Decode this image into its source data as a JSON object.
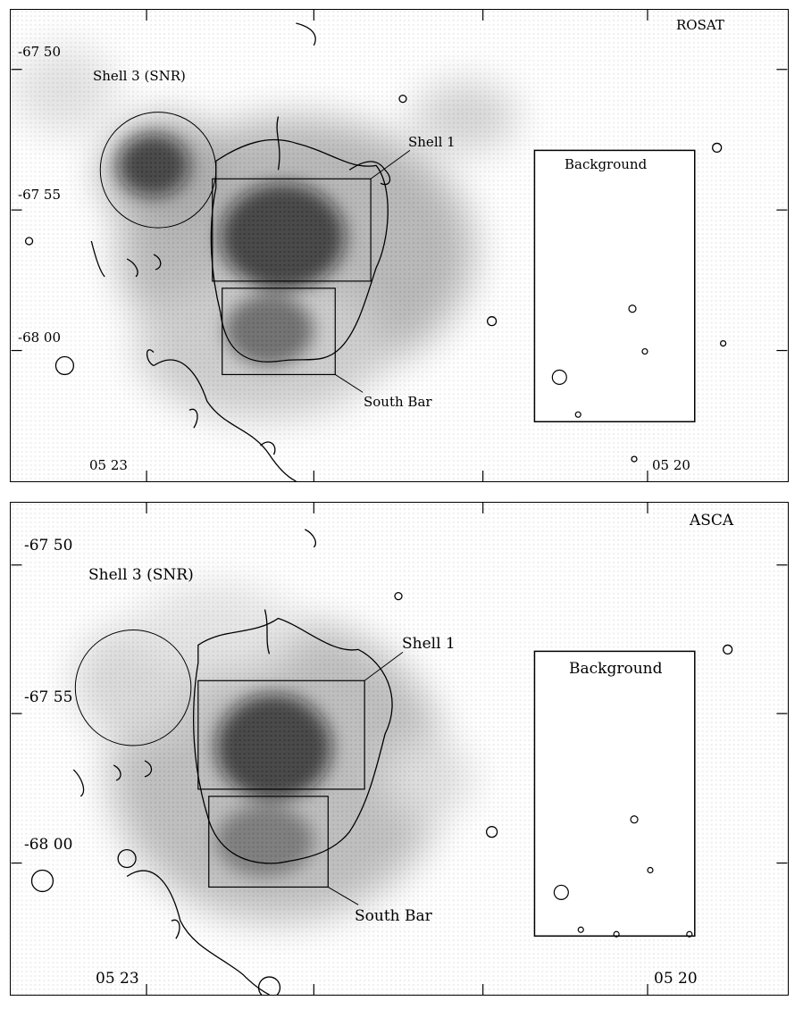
{
  "panels": [
    {
      "instrument": "ROSAT",
      "dec_labels": [
        "-67 50",
        "-67 55",
        "-68 00"
      ],
      "ra_labels": [
        "05 23",
        "05 20"
      ],
      "regions": {
        "snr": "Shell 3 (SNR)",
        "shell": "Shell 1",
        "background": "Background",
        "south_bar": "South Bar"
      }
    },
    {
      "instrument": "ASCA",
      "dec_labels": [
        "-67 50",
        "-67 55",
        "-68 00"
      ],
      "ra_labels": [
        "05 23",
        "05 20"
      ],
      "regions": {
        "snr": "Shell 3 (SNR)",
        "shell": "Shell 1",
        "background": "Background",
        "south_bar": "South Bar"
      }
    }
  ]
}
